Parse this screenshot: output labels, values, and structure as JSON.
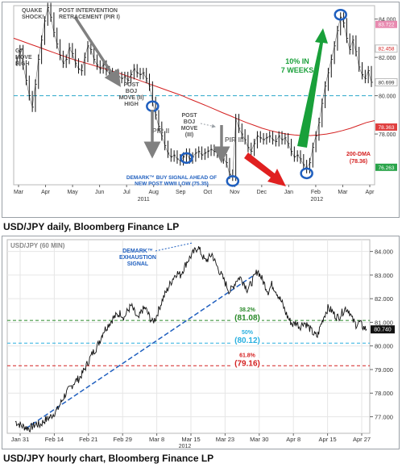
{
  "captions": {
    "daily": "USD/JPY daily, Bloomberg Finance LP",
    "hourly": "USD/JPY hourly chart, Bloomberg Finance LP"
  },
  "colors": {
    "price": "#111111",
    "ma200": "#d42020",
    "fib50": "#2ab0e0",
    "fib382": "#2a8a2a",
    "fib618": "#d42020",
    "green_arrow": "#19a03a",
    "red_arrow": "#e02020",
    "grey_arrow": "#808080",
    "demark_circle": "#1f5fbf",
    "annotation_blue": "#1f5fbf",
    "grid": "#e6e6e6"
  },
  "chart_data": [
    {
      "type": "line",
      "title": "",
      "ylim": [
        75.35,
        84.7
      ],
      "y_ticks": [
        78.0,
        80.0,
        82.0,
        84.0
      ],
      "grid": false,
      "x_tick_labels": [
        "Mar",
        "Apr",
        "May",
        "Jun",
        "Jul",
        "Aug",
        "Sep",
        "Oct",
        "Nov",
        "Dec",
        "Jan",
        "Feb",
        "Mar",
        "Apr"
      ],
      "year_labels": [
        "2011",
        "2012"
      ],
      "right_axis_badges": [
        "83.722",
        "82.458",
        "80.699",
        "78.363",
        "76.263"
      ],
      "series": [
        {
          "name": "",
          "values": [
            81.8,
            82.4,
            81.6,
            80.8,
            80.0,
            79.4,
            80.6,
            81.9,
            82.9,
            83.9,
            84.6,
            84.1,
            83.3,
            82.7,
            82.1,
            81.7,
            81.9,
            82.5,
            82.2,
            81.7,
            81.4,
            81.3,
            82.0,
            82.6,
            82.4,
            81.9,
            81.6,
            81.4,
            81.6,
            81.3,
            81.2,
            81.0,
            81.1,
            81.0,
            80.9,
            81.0,
            80.8,
            81.1,
            81.4,
            81.2,
            81.1,
            81.2,
            80.9,
            80.5,
            79.7,
            79.0,
            78.4,
            77.9,
            77.4,
            77.0,
            76.8,
            76.9,
            76.7,
            76.6,
            76.8,
            77.0,
            76.7,
            76.8,
            77.0,
            77.1,
            76.9,
            77.0,
            77.1,
            77.2,
            77.1,
            77.0,
            77.0,
            76.7,
            76.5,
            75.9,
            75.8,
            78.8,
            78.3,
            78.0,
            77.7,
            77.3,
            77.1,
            77.5,
            77.9,
            77.8,
            77.7,
            77.8,
            77.9,
            77.7,
            77.6,
            77.9,
            77.7,
            77.8,
            77.5,
            77.1,
            76.8,
            76.9,
            76.7,
            76.4,
            76.2,
            76.5,
            77.3,
            77.9,
            78.6,
            79.6,
            80.5,
            81.2,
            81.9,
            82.6,
            83.4,
            84.1,
            83.8,
            83.0,
            82.4,
            82.9,
            82.3,
            81.5,
            81.1,
            80.9,
            81.3,
            80.7
          ],
          "ma200": [
            83.0,
            82.85,
            82.7,
            82.55,
            82.4,
            82.25,
            82.1,
            81.95,
            81.82,
            81.7,
            81.58,
            81.45,
            81.32,
            81.2,
            81.05,
            80.9,
            80.75,
            80.6,
            80.45,
            80.3,
            80.15,
            80.0,
            79.82,
            79.65,
            79.48,
            79.3,
            79.12,
            78.95,
            78.77,
            78.6,
            78.45,
            78.3,
            78.18,
            78.08,
            78.0,
            77.95,
            77.92,
            77.92,
            77.95,
            78.0,
            78.08,
            78.18,
            78.3,
            78.45,
            78.6,
            78.7
          ]
        }
      ],
      "reference_lines": [
        {
          "value": 80.0,
          "style": "dashed",
          "color": "#2aa7c9"
        }
      ],
      "annotations": {
        "quake": "QUAKE SHOCK!",
        "g7": "G7 MOVE HIGH",
        "pir1": "POST INTERVENTION RETRACEMENT (PIR I)",
        "post_boj_2": "POST BOJ MOVE (II) HIGH",
        "pir2": "PIR II",
        "post_boj_3": "POST BOJ MOVE (III)",
        "pir3": "PIR III",
        "demark": "DEMARK™ BUY SIGNAL AHEAD OF NEW POST WWII LOW (75.35)",
        "ten_pct": "10% IN 7 WEEKS",
        "dma200": "200-DMA (78.36)"
      }
    },
    {
      "type": "line",
      "title": "USD/JPY (60 MIN)",
      "ylim": [
        76.3,
        84.5
      ],
      "y_ticks": [
        77.0,
        78.0,
        79.0,
        80.0,
        81.0,
        82.0,
        83.0,
        84.0
      ],
      "grid": true,
      "x_tick_labels": [
        "Jan 31",
        "Feb 14",
        "Feb 21",
        "Feb 29",
        "Mar 8",
        "Mar 15",
        "Mar 23",
        "Mar 30",
        "Apr 8",
        "Apr 15",
        "Apr 27"
      ],
      "year_labels": [
        "2012"
      ],
      "last_price_badge": "80.740",
      "series": [
        {
          "name": "",
          "values": [
            76.8,
            76.7,
            76.6,
            76.55,
            76.5,
            76.6,
            76.7,
            76.65,
            76.8,
            76.9,
            77.0,
            77.15,
            77.3,
            77.6,
            77.9,
            78.1,
            78.3,
            78.5,
            78.6,
            78.8,
            79.1,
            79.4,
            79.7,
            79.9,
            80.2,
            80.6,
            80.8,
            81.0,
            81.2,
            81.3,
            81.4,
            81.2,
            81.5,
            81.7,
            81.4,
            81.1,
            81.5,
            81.6,
            81.3,
            81.0,
            81.2,
            81.6,
            82.0,
            82.3,
            82.6,
            82.9,
            83.1,
            83.0,
            83.3,
            83.6,
            83.8,
            84.0,
            84.2,
            83.9,
            83.6,
            83.7,
            83.9,
            83.5,
            83.2,
            82.9,
            82.6,
            82.3,
            82.5,
            82.8,
            82.9,
            82.7,
            82.4,
            82.6,
            82.9,
            83.2,
            82.9,
            82.6,
            82.3,
            82.6,
            82.4,
            82.1,
            81.8,
            81.4,
            81.1,
            80.9,
            81.0,
            80.8,
            81.0,
            80.9,
            80.7,
            80.5,
            80.4,
            80.9,
            81.3,
            81.6,
            81.5,
            81.3,
            81.2,
            81.4,
            81.6,
            81.5,
            81.1,
            80.9,
            81.0,
            80.8,
            80.7
          ]
        }
      ],
      "fib_levels": [
        {
          "label": "38.2%",
          "value_label": "(81.08)",
          "value": 81.08,
          "color": "#2a8a2a"
        },
        {
          "label": "50%",
          "value_label": "(80.12)",
          "value": 80.12,
          "color": "#2ab0e0"
        },
        {
          "label": "61.8%",
          "value_label": "(79.16)",
          "value": 79.16,
          "color": "#d42020"
        }
      ],
      "annotations": {
        "demark": "DEMARK™ EXHAUSTION SIGNAL"
      }
    }
  ]
}
